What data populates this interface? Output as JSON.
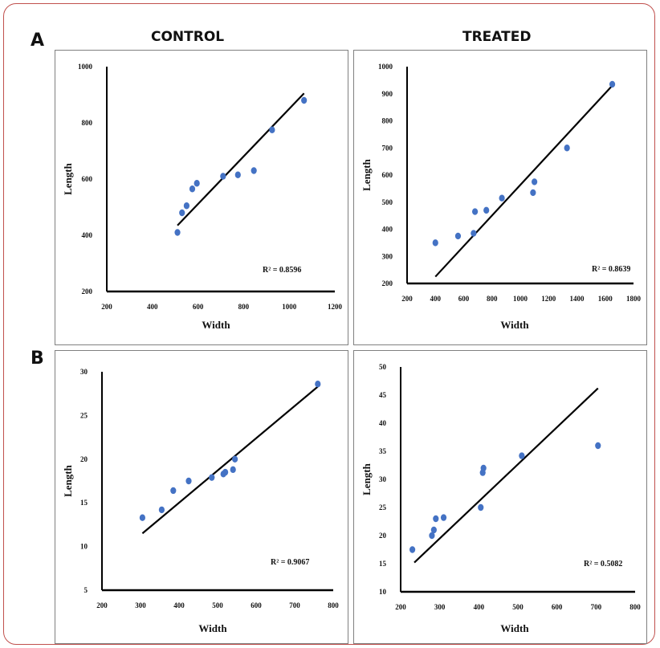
{
  "headers": {
    "col1": "CONTROL",
    "col2": "TREATED",
    "rowA": "A",
    "rowB": "B"
  },
  "colors": {
    "point": "#4472c4",
    "line": "#000000",
    "frame": "#c0504d"
  },
  "chart_data": [
    {
      "id": "a-control",
      "type": "scatter",
      "xlabel": "Width",
      "ylabel": "Length",
      "xlim": [
        200,
        1200
      ],
      "ylim": [
        200,
        1000
      ],
      "xticks": [
        200,
        400,
        600,
        800,
        1000,
        1200
      ],
      "yticks": [
        200,
        400,
        600,
        800,
        1000
      ],
      "points": [
        [
          510,
          410
        ],
        [
          530,
          480
        ],
        [
          550,
          505
        ],
        [
          575,
          565
        ],
        [
          595,
          585
        ],
        [
          710,
          610
        ],
        [
          775,
          615
        ],
        [
          845,
          630
        ],
        [
          925,
          775
        ],
        [
          1065,
          880
        ]
      ],
      "trendline": [
        [
          510,
          435
        ],
        [
          1065,
          905
        ]
      ],
      "r2": "R² = 0.8596"
    },
    {
      "id": "a-treated",
      "type": "scatter",
      "xlabel": "Width",
      "ylabel": "Length",
      "xlim": [
        200,
        1800
      ],
      "ylim": [
        200,
        1000
      ],
      "xticks": [
        200,
        400,
        600,
        800,
        1000,
        1200,
        1400,
        1600,
        1800
      ],
      "yticks": [
        200,
        300,
        400,
        500,
        600,
        700,
        800,
        900,
        1000
      ],
      "points": [
        [
          400,
          350
        ],
        [
          560,
          375
        ],
        [
          670,
          385
        ],
        [
          680,
          465
        ],
        [
          760,
          470
        ],
        [
          870,
          515
        ],
        [
          1090,
          535
        ],
        [
          1100,
          575
        ],
        [
          1330,
          700
        ],
        [
          1650,
          935
        ]
      ],
      "trendline": [
        [
          400,
          225
        ],
        [
          1650,
          930
        ]
      ],
      "r2": "R² = 0.8639"
    },
    {
      "id": "b-control",
      "type": "scatter",
      "xlabel": "Width",
      "ylabel": "Length",
      "xlim": [
        200,
        800
      ],
      "ylim": [
        5,
        30
      ],
      "xticks": [
        200,
        300,
        400,
        500,
        600,
        700,
        800
      ],
      "yticks": [
        5,
        10,
        15,
        20,
        25,
        30
      ],
      "points": [
        [
          305,
          13.3
        ],
        [
          355,
          14.2
        ],
        [
          385,
          16.4
        ],
        [
          425,
          17.5
        ],
        [
          485,
          17.9
        ],
        [
          515,
          18.3
        ],
        [
          520,
          18.5
        ],
        [
          540,
          18.8
        ],
        [
          545,
          20.0
        ],
        [
          760,
          28.6
        ]
      ],
      "trendline": [
        [
          305,
          11.5
        ],
        [
          760,
          28.3
        ]
      ],
      "r2": "R² = 0.9067"
    },
    {
      "id": "b-treated",
      "type": "scatter",
      "xlabel": "Width",
      "ylabel": "Length",
      "xlim": [
        200,
        800
      ],
      "ylim": [
        10,
        50
      ],
      "xticks": [
        200,
        300,
        400,
        500,
        600,
        700,
        800
      ],
      "yticks": [
        10,
        15,
        20,
        25,
        30,
        35,
        40,
        45,
        50
      ],
      "points": [
        [
          230,
          17.5
        ],
        [
          280,
          20.0
        ],
        [
          285,
          21.0
        ],
        [
          290,
          23.0
        ],
        [
          310,
          23.2
        ],
        [
          405,
          25.0
        ],
        [
          410,
          31.2
        ],
        [
          412,
          32.0
        ],
        [
          510,
          34.2
        ],
        [
          705,
          36.0
        ]
      ],
      "trendline": [
        [
          235,
          15.2
        ],
        [
          705,
          46.2
        ]
      ],
      "r2": "R² = 0.5082"
    }
  ]
}
